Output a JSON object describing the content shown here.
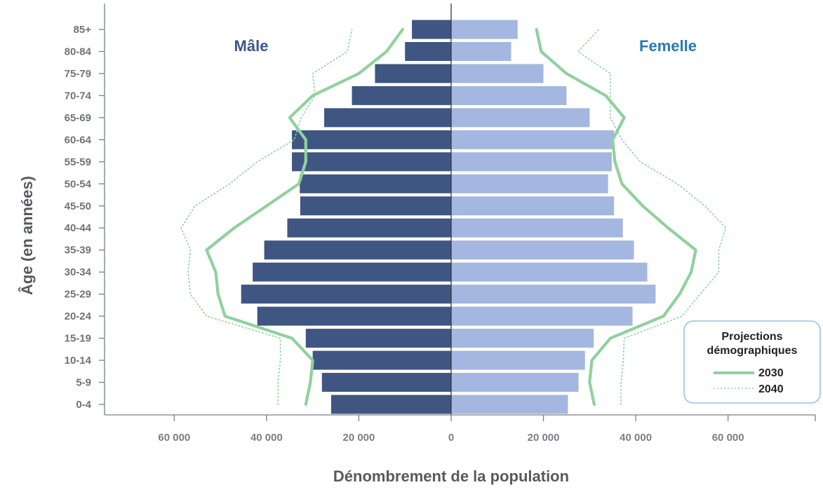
{
  "chart_data": {
    "type": "bar",
    "orientation": "horizontal-population-pyramid",
    "categories": [
      "0-4",
      "5-9",
      "10-14",
      "15-19",
      "20-24",
      "25-29",
      "30-34",
      "35-39",
      "40-44",
      "45-50",
      "50-54",
      "55-59",
      "60-64",
      "65-69",
      "70-74",
      "75-79",
      "80-84",
      "85+"
    ],
    "series": [
      {
        "name": "Mâle",
        "color": "#3f5682",
        "values": [
          26000,
          28000,
          30000,
          31500,
          42000,
          45500,
          43000,
          40500,
          35500,
          32700,
          32800,
          34500,
          34500,
          27500,
          21500,
          16500,
          10000,
          8500
        ]
      },
      {
        "name": "Femelle",
        "color": "#a3b7e0",
        "values": [
          25300,
          27600,
          29000,
          30900,
          39300,
          44300,
          42500,
          39600,
          37200,
          35300,
          34000,
          34800,
          35300,
          30000,
          25000,
          20000,
          13000,
          14400
        ]
      }
    ],
    "projections": [
      {
        "name": "2030",
        "style": "solid",
        "color": "#8fd19e",
        "male": [
          31500,
          30500,
          30000,
          34500,
          49000,
          50500,
          51000,
          53000,
          47000,
          40000,
          33000,
          31500,
          31500,
          35000,
          30000,
          20000,
          14000,
          10500
        ],
        "female": [
          31000,
          30000,
          30500,
          34500,
          46000,
          49500,
          52000,
          53000,
          47000,
          41500,
          37000,
          35500,
          35000,
          37500,
          33500,
          25000,
          19500,
          18500
        ]
      },
      {
        "name": "2040",
        "style": "dotted",
        "color": "#8fd19e",
        "male": [
          37500,
          37500,
          37000,
          37000,
          53000,
          56500,
          57000,
          56500,
          58500,
          55500,
          48000,
          42000,
          34000,
          32500,
          29500,
          30000,
          22500,
          21500
        ],
        "female": [
          36800,
          36800,
          37300,
          37500,
          50000,
          54000,
          58000,
          58000,
          59500,
          55000,
          49000,
          41000,
          37000,
          34500,
          34500,
          34500,
          27500,
          32000
        ]
      }
    ],
    "xlabel": "Dénombrement de la population",
    "ylabel": "Âge (en années)",
    "xlim": [
      -75000,
      79000
    ],
    "xticks": [
      -60000,
      -40000,
      -20000,
      0,
      20000,
      40000,
      60000
    ],
    "xtick_labels": [
      "60 000",
      "40 000",
      "20 000",
      "0",
      "20 000",
      "40 000",
      "60 000"
    ],
    "grid": false
  },
  "labels": {
    "male": "Mâle",
    "female": "Femelle",
    "legend_title_line1": "Projections",
    "legend_title_line2": "démographiques",
    "legend_2030": "2030",
    "legend_2040": "2040"
  }
}
